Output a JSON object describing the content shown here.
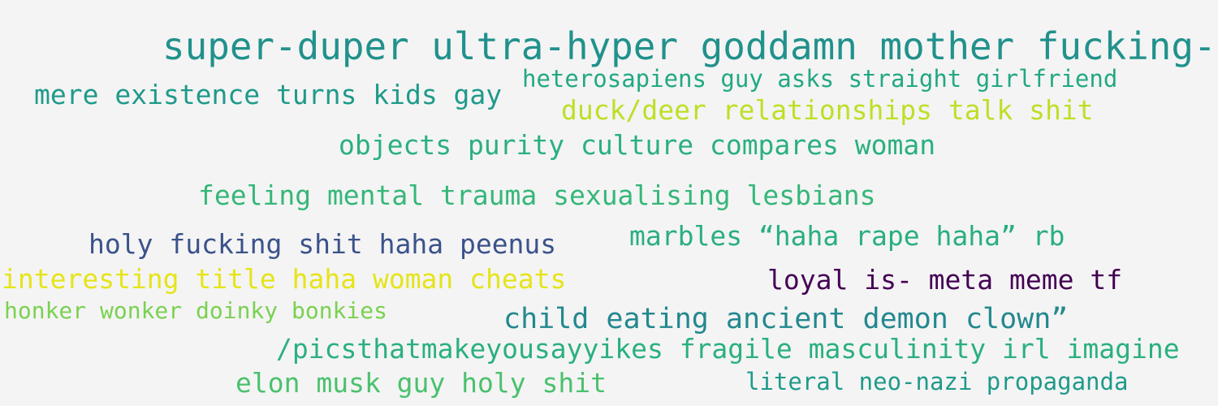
{
  "word_cloud": {
    "phrases": [
      {
        "text": "super-duper ultra-hyper goddamn mother fucking-",
        "color": "#21918c"
      },
      {
        "text": "mere existence turns kids gay",
        "color": "#1f9a8a"
      },
      {
        "text": "heterosapiens guy asks straight girlfriend",
        "color": "#22a884"
      },
      {
        "text": "duck/deer relationships talk shit",
        "color": "#bddf26"
      },
      {
        "text": "objects purity culture compares woman",
        "color": "#2ab07f"
      },
      {
        "text": "feeling mental trauma sexualising lesbians",
        "color": "#35b779"
      },
      {
        "text": "holy fucking shit haha peenus",
        "color": "#3b528b"
      },
      {
        "text": "marbles “haha rape haha” rb",
        "color": "#29af7f"
      },
      {
        "text": "interesting title haha woman cheats",
        "color": "#e5e419"
      },
      {
        "text": "loyal is- meta meme tf",
        "color": "#440154"
      },
      {
        "text": "honker wonker doinky bonkies",
        "color": "#7ad151"
      },
      {
        "text": "child eating ancient demon clown”",
        "color": "#23888e"
      },
      {
        "text": "/picsthatmakeyousayyikes fragile masculinity irl imagine",
        "color": "#2ab07f"
      },
      {
        "text": "elon musk guy holy shit",
        "color": "#4ac16d"
      },
      {
        "text": "literal neo-nazi propaganda",
        "color": "#1f9a8a"
      }
    ]
  }
}
